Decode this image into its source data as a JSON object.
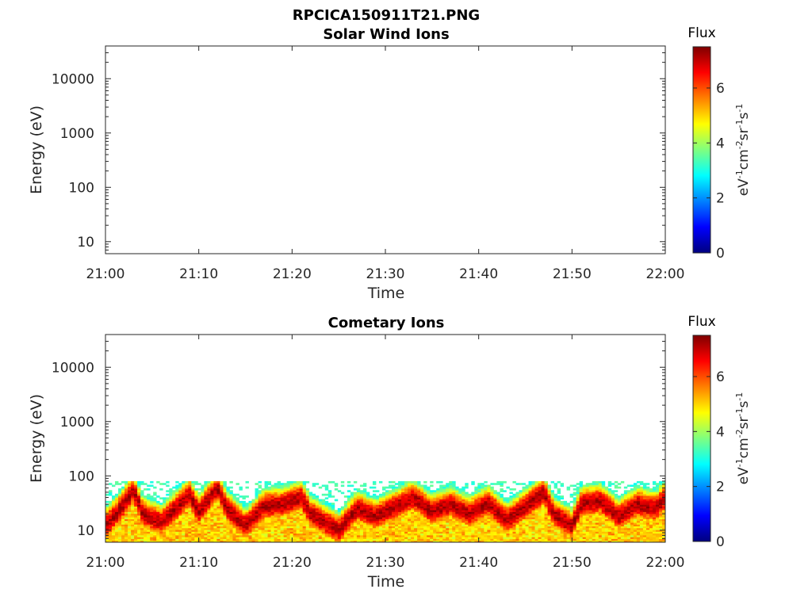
{
  "figure_title": "RPCICA150911T21.PNG",
  "chart_data": [
    {
      "type": "heatmap",
      "title": "Solar Wind Ions",
      "xlabel": "Time",
      "ylabel": "Energy (eV)",
      "x_ticks": [
        "21:00",
        "21:10",
        "21:20",
        "21:30",
        "21:40",
        "21:50",
        "22:00"
      ],
      "y_scale": "log",
      "y_ticks": [
        "10",
        "100",
        "1000",
        "10000"
      ],
      "ylim": [
        6,
        40000
      ],
      "colorbar": {
        "title": "Flux",
        "unit_base": "eV",
        "unit_exps": [
          "-1",
          "-2",
          "-1",
          "-1"
        ],
        "unit_parts": [
          "cm",
          "sr",
          "s"
        ],
        "ticks": [
          "0",
          "2",
          "4",
          "6"
        ],
        "range": [
          0,
          7.5
        ]
      },
      "data": "empty"
    },
    {
      "type": "heatmap",
      "title": "Cometary Ions",
      "xlabel": "Time",
      "ylabel": "Energy (eV)",
      "x_ticks": [
        "21:00",
        "21:10",
        "21:20",
        "21:30",
        "21:40",
        "21:50",
        "22:00"
      ],
      "y_scale": "log",
      "y_ticks": [
        "10",
        "100",
        "1000",
        "10000"
      ],
      "ylim": [
        6,
        40000
      ],
      "colorbar": {
        "title": "Flux",
        "unit_base": "eV",
        "unit_exps": [
          "-1",
          "-2",
          "-1",
          "-1"
        ],
        "unit_parts": [
          "cm",
          "sr",
          "s"
        ],
        "ticks": [
          "0",
          "2",
          "4",
          "6"
        ],
        "range": [
          0,
          7.5
        ]
      },
      "peak_energy_eV_by_minute": [
        {
          "t": 0,
          "e": 12
        },
        {
          "t": 2,
          "e": 30
        },
        {
          "t": 3,
          "e": 55
        },
        {
          "t": 4,
          "e": 20
        },
        {
          "t": 6,
          "e": 14
        },
        {
          "t": 9,
          "e": 45
        },
        {
          "t": 10,
          "e": 22
        },
        {
          "t": 12,
          "e": 60
        },
        {
          "t": 13,
          "e": 25
        },
        {
          "t": 15,
          "e": 12
        },
        {
          "t": 17,
          "e": 28
        },
        {
          "t": 19,
          "e": 30
        },
        {
          "t": 21,
          "e": 40
        },
        {
          "t": 22,
          "e": 20
        },
        {
          "t": 25,
          "e": 10
        },
        {
          "t": 27,
          "e": 25
        },
        {
          "t": 29,
          "e": 18
        },
        {
          "t": 33,
          "e": 40
        },
        {
          "t": 35,
          "e": 22
        },
        {
          "t": 37,
          "e": 30
        },
        {
          "t": 39,
          "e": 20
        },
        {
          "t": 41,
          "e": 32
        },
        {
          "t": 43,
          "e": 15
        },
        {
          "t": 47,
          "e": 50
        },
        {
          "t": 48,
          "e": 20
        },
        {
          "t": 50,
          "e": 12
        },
        {
          "t": 51,
          "e": 30
        },
        {
          "t": 53,
          "e": 35
        },
        {
          "t": 55,
          "e": 18
        },
        {
          "t": 57,
          "e": 30
        },
        {
          "t": 59,
          "e": 25
        },
        {
          "t": 60,
          "e": 40
        }
      ],
      "max_energy_eV": 80
    }
  ]
}
